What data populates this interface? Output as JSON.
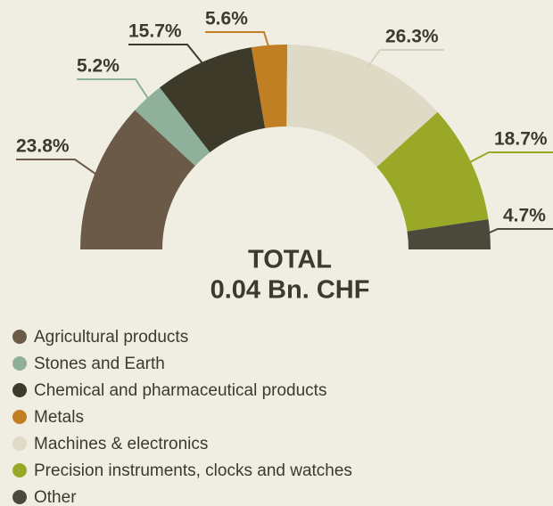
{
  "chart_data": {
    "type": "pie",
    "half": true,
    "categories": [
      "Agricultural products",
      "Stones and Earth",
      "Chemical and pharmaceutical products",
      "Metals",
      "Machines & electronics",
      "Precision instruments, clocks and watches",
      "Other"
    ],
    "values": [
      23.8,
      5.2,
      15.7,
      5.6,
      26.3,
      18.7,
      4.7
    ],
    "value_labels": [
      "23.8%",
      "5.2%",
      "15.7%",
      "5.6%",
      "26.3%",
      "18.7%",
      "4.7%"
    ],
    "colors": [
      "#6b5a48",
      "#8fb09a",
      "#3d3a2a",
      "#c07f22",
      "#dedac6",
      "#9aa827",
      "#4a4a3c"
    ],
    "total_label": "TOTAL",
    "total_value": "0.04 Bn. CHF"
  }
}
